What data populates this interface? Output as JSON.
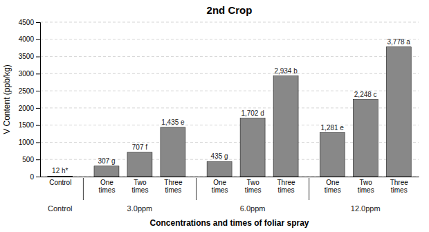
{
  "chart_data": {
    "type": "bar",
    "title": "2nd Crop",
    "xlabel": "Concentrations and times of foliar spray",
    "ylabel": "V Content (ppb/kg)",
    "categories": [
      "Control",
      "One\ntimes",
      "Two\ntimes",
      "Three\ntimes",
      "One\ntimes",
      "Two\ntimes",
      "Three\ntimes",
      "One\ntimes",
      "Two\ntimes",
      "Three\ntimes"
    ],
    "values": [
      12,
      307,
      707,
      1435,
      435,
      1702,
      2934,
      1281,
      2248,
      3778
    ],
    "value_labels": [
      "12 h*",
      "307 g",
      "707 f",
      "1,435 e",
      "435 g",
      "1,702 d",
      "2,934 b",
      "1,281 e",
      "2,248 c",
      "3,778 a"
    ],
    "groups": [
      {
        "label": "Control",
        "size": 1
      },
      {
        "label": "3.0ppm",
        "size": 3
      },
      {
        "label": "6.0ppm",
        "size": 3
      },
      {
        "label": "12.0ppm",
        "size": 3
      }
    ],
    "color": "#888888",
    "ylim": [
      0,
      4500
    ],
    "yticks": [
      0,
      500,
      1000,
      1500,
      2000,
      2500,
      3000,
      3500,
      4000,
      4500
    ],
    "grid": true,
    "data_labels": true
  }
}
